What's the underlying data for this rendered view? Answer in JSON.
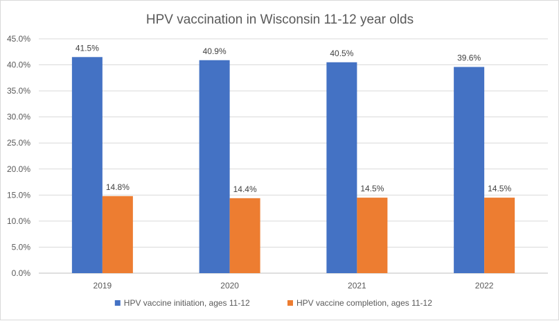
{
  "chart_data": {
    "type": "bar",
    "title": "HPV vaccination in Wisconsin 11-12 year olds",
    "xlabel": "",
    "ylabel": "",
    "categories": [
      "2019",
      "2020",
      "2021",
      "2022"
    ],
    "series": [
      {
        "name": "HPV vaccine initiation, ages 11-12",
        "values": [
          41.5,
          40.9,
          40.5,
          39.6
        ],
        "labels": [
          "41.5%",
          "40.9%",
          "40.5%",
          "39.6%"
        ],
        "color": "#4472C4"
      },
      {
        "name": "HPV vaccine completion, ages 11-12",
        "values": [
          14.8,
          14.4,
          14.5,
          14.5
        ],
        "labels": [
          "14.8%",
          "14.4%",
          "14.5%",
          "14.5%"
        ],
        "color": "#ED7D31"
      }
    ],
    "ylim": [
      0,
      45
    ],
    "yticks": [
      "0.0%",
      "5.0%",
      "10.0%",
      "15.0%",
      "20.0%",
      "25.0%",
      "30.0%",
      "35.0%",
      "40.0%",
      "45.0%"
    ],
    "grid": true,
    "gridline_color": "#d9d9d9",
    "legend_position": "bottom"
  }
}
